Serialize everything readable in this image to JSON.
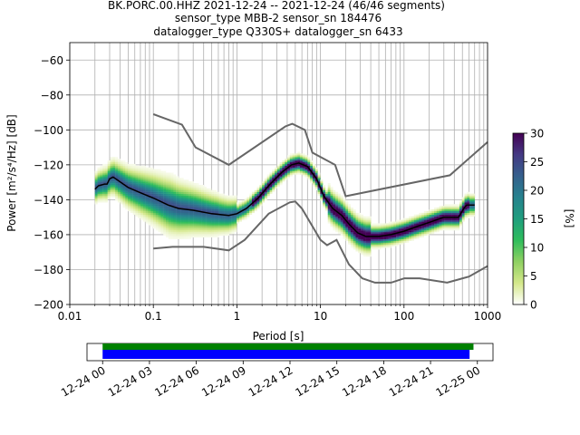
{
  "chart_data": {
    "type": "heatmap",
    "title_lines": [
      "BK.PORC.00.HHZ   2021-12-24 -- 2021-12-24  (46/46 segments)",
      "sensor_type MBB-2 sensor_sn 184476",
      "datalogger_type Q330S+ datalogger_sn 6433"
    ],
    "xlabel": "Period [s]",
    "ylabel": "Power [m²/s⁴/Hz] [dB]",
    "xscale": "log",
    "xlim": [
      0.01,
      1000
    ],
    "ylim": [
      -200,
      -50
    ],
    "x_ticks": [
      0.01,
      0.1,
      1,
      10,
      100,
      1000
    ],
    "x_tick_labels": [
      "0.01",
      "0.1",
      "1",
      "10",
      "100",
      "1000"
    ],
    "y_ticks": [
      -200,
      -180,
      -160,
      -140,
      -120,
      -100,
      -80,
      -60
    ],
    "y_tick_labels": [
      "−200",
      "−180",
      "−160",
      "−140",
      "−120",
      "−100",
      "−80",
      "−60"
    ],
    "grid": true,
    "colorbar": {
      "label": "[%]",
      "range": [
        0,
        30
      ],
      "ticks": [
        0,
        5,
        10,
        15,
        20,
        25,
        30
      ],
      "tick_labels": [
        "0",
        "5",
        "10",
        "15",
        "20",
        "25",
        "30"
      ],
      "colors": [
        "#ffffff",
        "#d4e88a",
        "#8fd062",
        "#2ebd5c",
        "#1f9e7e",
        "#26828e",
        "#35608d",
        "#443983",
        "#440154"
      ]
    },
    "mode_curve": {
      "name": "mode",
      "color": "#000000",
      "points": [
        [
          0.02,
          -134
        ],
        [
          0.022,
          -132
        ],
        [
          0.026,
          -131
        ],
        [
          0.028,
          -131
        ],
        [
          0.03,
          -128
        ],
        [
          0.033,
          -127
        ],
        [
          0.038,
          -129
        ],
        [
          0.05,
          -133
        ],
        [
          0.07,
          -136
        ],
        [
          0.1,
          -139
        ],
        [
          0.15,
          -143
        ],
        [
          0.2,
          -145
        ],
        [
          0.3,
          -146
        ],
        [
          0.5,
          -148
        ],
        [
          0.8,
          -149
        ],
        [
          1,
          -148
        ],
        [
          1.3,
          -145
        ],
        [
          1.8,
          -139
        ],
        [
          2.5,
          -131
        ],
        [
          3.5,
          -124
        ],
        [
          4.5,
          -120
        ],
        [
          5.5,
          -119
        ],
        [
          7,
          -121
        ],
        [
          9,
          -128
        ],
        [
          11,
          -138
        ],
        [
          14,
          -145
        ],
        [
          18,
          -149
        ],
        [
          22,
          -154
        ],
        [
          28,
          -159
        ],
        [
          35,
          -161
        ],
        [
          50,
          -161
        ],
        [
          70,
          -160
        ],
        [
          100,
          -158
        ],
        [
          150,
          -155
        ],
        [
          200,
          -153
        ],
        [
          300,
          -150
        ],
        [
          450,
          -150
        ],
        [
          520,
          -145
        ],
        [
          560,
          -143
        ],
        [
          700,
          -143
        ]
      ]
    },
    "noise_models": {
      "color": "#666666",
      "high": [
        [
          0.1,
          -91
        ],
        [
          0.22,
          -97
        ],
        [
          0.32,
          -110
        ],
        [
          0.8,
          -120
        ],
        [
          3.8,
          -98
        ],
        [
          4.6,
          -96.5
        ],
        [
          6.5,
          -100
        ],
        [
          8,
          -113
        ],
        [
          15,
          -120
        ],
        [
          20,
          -138
        ],
        [
          354,
          -126
        ],
        [
          1000,
          -107
        ]
      ],
      "low": [
        [
          0.1,
          -168
        ],
        [
          0.17,
          -167
        ],
        [
          0.4,
          -167
        ],
        [
          0.8,
          -169
        ],
        [
          1.24,
          -163
        ],
        [
          2.4,
          -148
        ],
        [
          4.3,
          -141.5
        ],
        [
          5,
          -141
        ],
        [
          6,
          -145
        ],
        [
          10,
          -163
        ],
        [
          12,
          -166
        ],
        [
          15.6,
          -163
        ],
        [
          21.9,
          -177
        ],
        [
          31.6,
          -185
        ],
        [
          45,
          -187.5
        ],
        [
          70,
          -187.5
        ],
        [
          101,
          -185
        ],
        [
          154,
          -185
        ],
        [
          328,
          -187.5
        ],
        [
          600,
          -184
        ],
        [
          1000,
          -178
        ]
      ]
    },
    "time_coverage": {
      "tick_labels": [
        "12-24 00",
        "12-24 03",
        "12-24 06",
        "12-24 09",
        "12-24 12",
        "12-24 15",
        "12-24 18",
        "12-24 21",
        "12-25 00"
      ],
      "range_hours": [
        -1.0,
        25.0
      ],
      "green_bar_hours": [
        0.0,
        23.75
      ],
      "blue_bar_hours": [
        0.0,
        23.5
      ],
      "green_color": "#008000",
      "blue_color": "#0000ff"
    }
  }
}
